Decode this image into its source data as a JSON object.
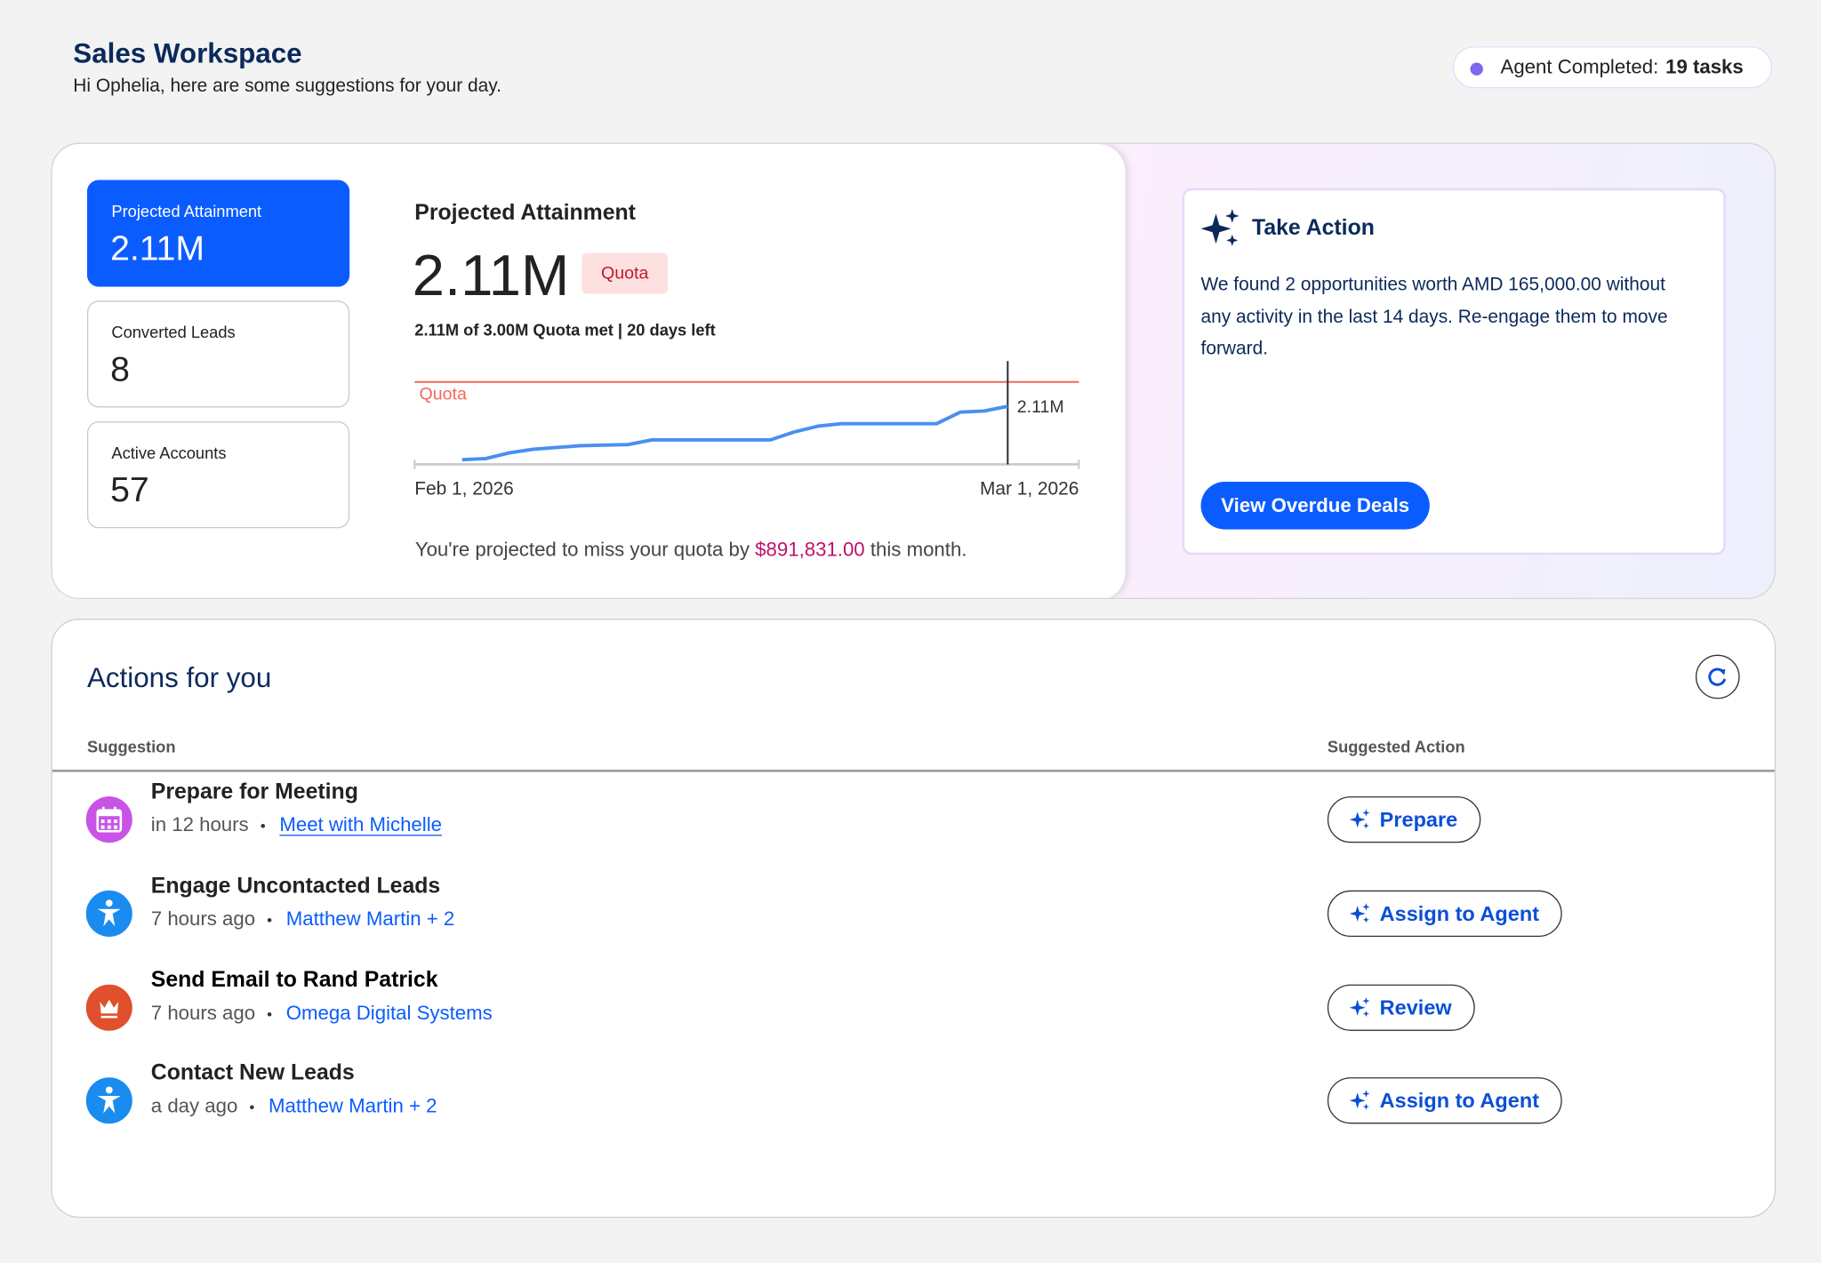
{
  "header": {
    "title": "Sales Workspace",
    "subtitle": "Hi Ophelia, here are some suggestions for your day.",
    "agent_badge": {
      "label": "Agent Completed:",
      "value": "19 tasks"
    }
  },
  "metrics": [
    {
      "label": "Projected Attainment",
      "value": "2.11M"
    },
    {
      "label": "Converted Leads",
      "value": 8
    },
    {
      "label": "Active Accounts",
      "value": 57
    }
  ],
  "attainment": {
    "title": "Projected Attainment",
    "value": "2.11M",
    "badge": "Quota",
    "summary": "2.11M of 3.00M Quota met | 20 days left",
    "chart": {
      "type": "line",
      "x": [
        "2026-02-03",
        "2026-02-04",
        "2026-02-05",
        "2026-02-06",
        "2026-02-08",
        "2026-02-10",
        "2026-02-11",
        "2026-02-16",
        "2026-02-17",
        "2026-02-18",
        "2026-02-19",
        "2026-02-23",
        "2026-02-24",
        "2026-02-25",
        "2026-02-26"
      ],
      "values": [
        0.17,
        0.21,
        0.42,
        0.55,
        0.68,
        0.72,
        0.89,
        0.89,
        1.18,
        1.39,
        1.48,
        1.48,
        1.9,
        1.94,
        2.11
      ],
      "xlim": [
        "2026-02-01",
        "2026-03-01"
      ],
      "xticks": [
        {
          "value": "2026-02-01",
          "label": "Feb 1, 2026"
        },
        {
          "value": "2026-03-01",
          "label": "Mar 1, 2026"
        }
      ],
      "ylim": [
        0,
        3
      ],
      "quota": 3,
      "quota_label": "Quota",
      "quota_color": "#f0685a",
      "color": "#4a8ff0",
      "marker": "2026-02-26",
      "end_label": "2.11M"
    },
    "note": {
      "before": "You're projected to miss your quota by",
      "amount": "$891,831.00",
      "after": "this month."
    }
  },
  "take_action": {
    "title": "Take Action",
    "body": "We found 2 opportunities worth AMD 165,000.00 without any activity in the last 14 days. Re-engage them to move forward.",
    "button": "View Overdue Deals"
  },
  "actions": {
    "title": "Actions for you",
    "columns": [
      "Suggestion",
      "Suggested Action"
    ],
    "rows": [
      {
        "title": "Prepare for Meeting",
        "time": "in 12 hours",
        "link": "Meet with Michelle",
        "action": "Prepare"
      },
      {
        "title": "Engage Uncontacted Leads",
        "time": "7 hours ago",
        "link": "Matthew Martin + 2",
        "action": "Assign to Agent"
      },
      {
        "title": "Send Email to Rand Patrick",
        "time": "7 hours ago",
        "link": "Omega Digital Systems",
        "action": "Review"
      },
      {
        "title": "Contact New Leads",
        "time": "a day ago",
        "link": "Matthew Martin + 2",
        "action": "Assign to Agent"
      }
    ]
  }
}
